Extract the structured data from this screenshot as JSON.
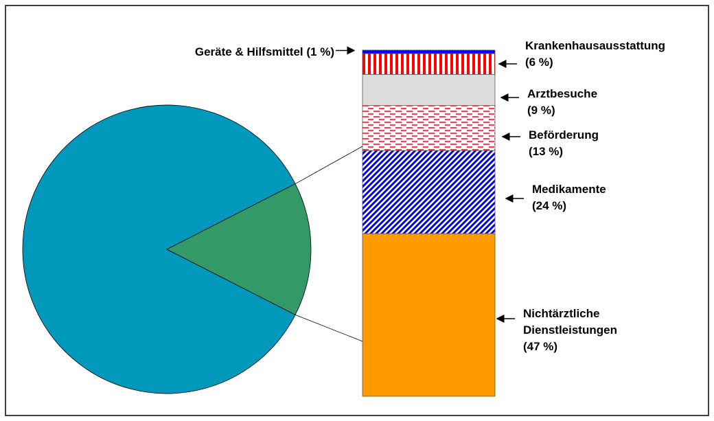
{
  "chart_data": {
    "type": "bar-of-pie",
    "pie": {
      "values": [
        85,
        15
      ],
      "colors": [
        "#0099bb",
        "#339966"
      ]
    },
    "categories": [
      "Nichtärztliche Dienstleistungen",
      "Medikamente",
      "Beförderung",
      "Arztbesuche",
      "Krankenhausausstattung",
      "Geräte & Hilfsmittel"
    ],
    "values": [
      47,
      24,
      13,
      9,
      6,
      1
    ],
    "value_labels": [
      "(47 %)",
      "(24 %)",
      "(13 %)",
      "(9 %)",
      "(6 %)",
      "(1 %)"
    ],
    "colors": [
      "#ff9900",
      "#0000ff",
      "#ff0000",
      "#dddddd",
      "#ff0000",
      "#0000ff"
    ],
    "patterns": [
      "solid",
      "diagonal",
      "dashes",
      "solid",
      "vertical",
      "solid"
    ]
  }
}
